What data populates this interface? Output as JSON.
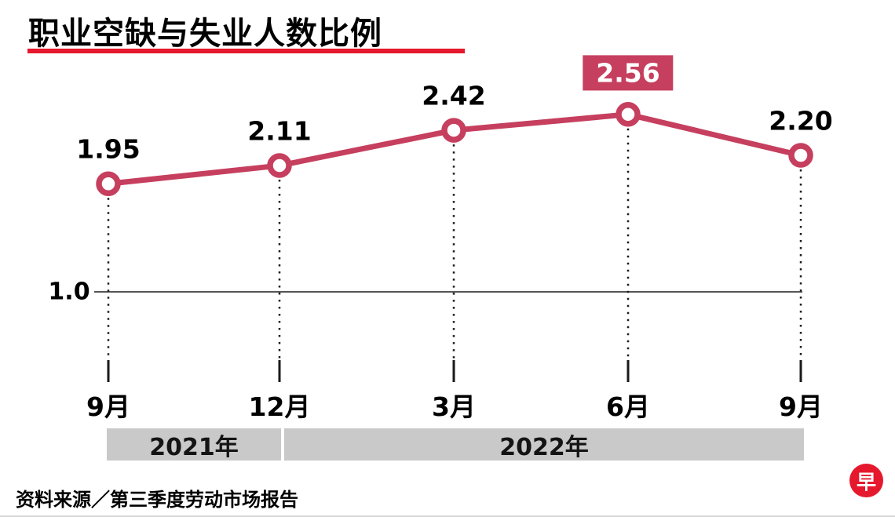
{
  "title": "职业空缺与失业人数比例",
  "source": "资料来源／第三季度劳动市场报告",
  "logo_char": "早",
  "colors": {
    "line": "#c63f5e",
    "underline": "#e6182d",
    "highlight_box": "#c63f5e",
    "band": "#c9c9c9",
    "logo": "#e6182d"
  },
  "chart_data": {
    "type": "line",
    "title": "职业空缺与失业人数比例",
    "x": [
      "9月",
      "12月",
      "3月",
      "6月",
      "9月"
    ],
    "values": [
      1.95,
      2.11,
      2.42,
      2.56,
      2.2
    ],
    "labels": [
      "1.95",
      "2.11",
      "2.42",
      "2.56",
      "2.20"
    ],
    "highlight_index": 3,
    "reference_line": {
      "value": 1.0,
      "label": "1.0"
    },
    "yaxis_visible_ticks": [
      "1.0"
    ],
    "grid": "dotted vertical guides from each point to axis",
    "legend_position": "none",
    "year_bands": [
      {
        "label": "2021年",
        "months": [
          "9月",
          "12月"
        ]
      },
      {
        "label": "2022年",
        "months": [
          "3月",
          "6月",
          "9月"
        ]
      }
    ]
  }
}
